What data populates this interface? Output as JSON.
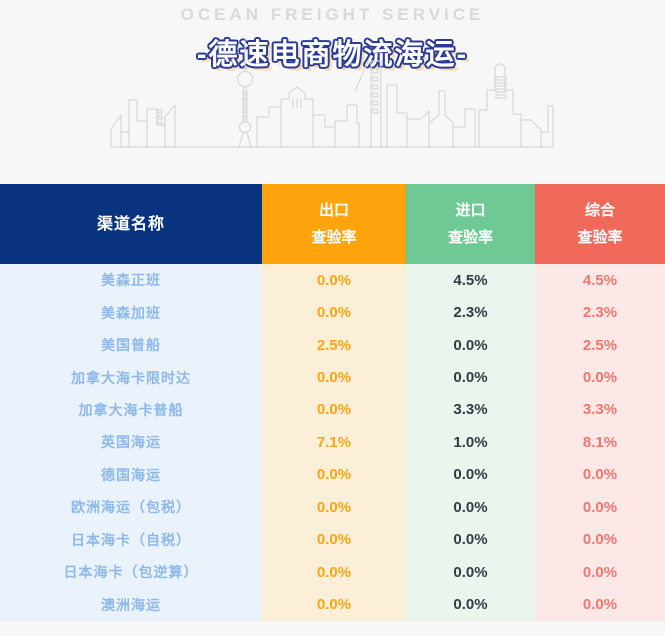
{
  "header": {
    "subtitle": "OCEAN FREIGHT SERVICE",
    "title": "-德速电商物流海运-",
    "colors": {
      "subtitle_text": "#d9d9d9",
      "title_fill": "#ffffff",
      "title_outline": "#2b3b94",
      "title_shadow": "#fadcb3",
      "skyline_stroke": "#d8d8d8"
    }
  },
  "table": {
    "header_text_color": "#ffffff",
    "columns": [
      {
        "id": "channel",
        "label": "渠道名称",
        "label2": "",
        "header_bg": "#0a337f",
        "body_bg": "#eaf3fc",
        "value_color": "#8fb9ea"
      },
      {
        "id": "export",
        "label": "出口",
        "label2": "查验率",
        "header_bg": "#ffa40d",
        "body_bg": "#fcefd7",
        "value_color": "#ffa413"
      },
      {
        "id": "import",
        "label": "进口",
        "label2": "查验率",
        "header_bg": "#6ec995",
        "body_bg": "#eaf5ed",
        "value_color": "#333b44"
      },
      {
        "id": "combined",
        "label": "综合",
        "label2": "查验率",
        "header_bg": "#f0695b",
        "body_bg": "#fce9e7",
        "value_color": "#f4756b"
      }
    ],
    "rows": [
      {
        "channel": "美森正班",
        "export": "0.0%",
        "import": "4.5%",
        "combined": "4.5%"
      },
      {
        "channel": "美森加班",
        "export": "0.0%",
        "import": "2.3%",
        "combined": "2.3%"
      },
      {
        "channel": "美国普船",
        "export": "2.5%",
        "import": "0.0%",
        "combined": "2.5%"
      },
      {
        "channel": "加拿大海卡限时达",
        "export": "0.0%",
        "import": "0.0%",
        "combined": "0.0%"
      },
      {
        "channel": "加拿大海卡普船",
        "export": "0.0%",
        "import": "3.3%",
        "combined": "3.3%"
      },
      {
        "channel": "英国海运",
        "export": "7.1%",
        "import": "1.0%",
        "combined": "8.1%"
      },
      {
        "channel": "德国海运",
        "export": "0.0%",
        "import": "0.0%",
        "combined": "0.0%"
      },
      {
        "channel": "欧洲海运（包税）",
        "export": "0.0%",
        "import": "0.0%",
        "combined": "0.0%"
      },
      {
        "channel": "日本海卡（自税）",
        "export": "0.0%",
        "import": "0.0%",
        "combined": "0.0%"
      },
      {
        "channel": "日本海卡（包逆算）",
        "export": "0.0%",
        "import": "0.0%",
        "combined": "0.0%"
      },
      {
        "channel": "澳洲海运",
        "export": "0.0%",
        "import": "0.0%",
        "combined": "0.0%"
      }
    ]
  }
}
